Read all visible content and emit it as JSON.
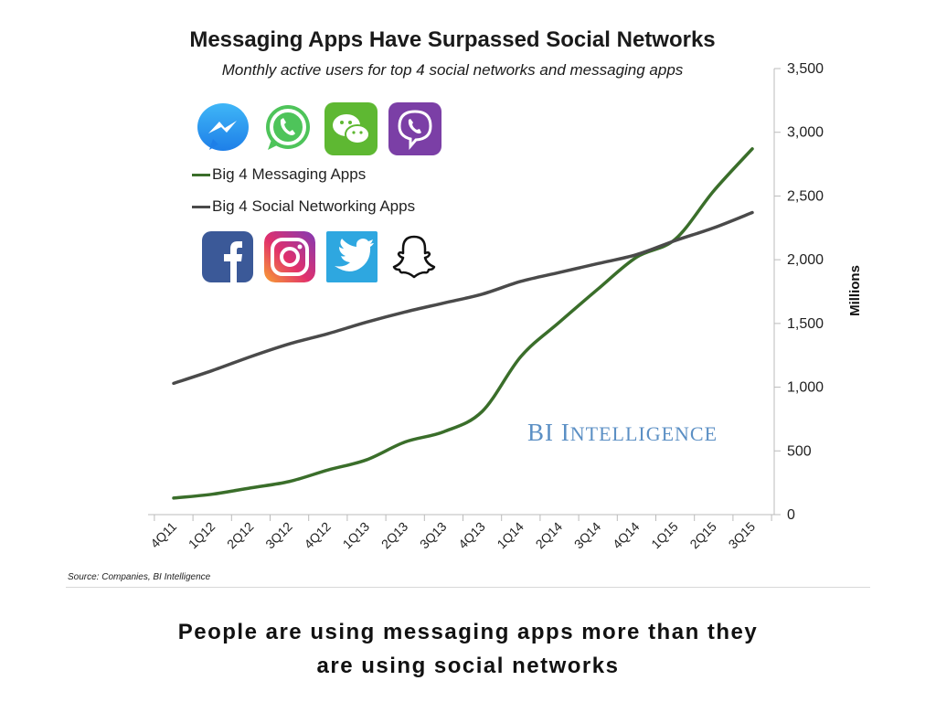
{
  "chart_data": {
    "type": "line",
    "title": "Messaging Apps Have Surpassed Social Networks",
    "subtitle": "Monthly active users for top 4 social networks and messaging apps",
    "ylabel": "Millions",
    "ylim": [
      0,
      3500
    ],
    "yticks": [
      0,
      500,
      1000,
      1500,
      2000,
      2500,
      3000,
      3500
    ],
    "ytick_labels": [
      "0",
      "500",
      "1,000",
      "1,500",
      "2,000",
      "2,500",
      "3,000",
      "3,500"
    ],
    "categories": [
      "4Q11",
      "1Q12",
      "2Q12",
      "3Q12",
      "4Q12",
      "1Q13",
      "2Q13",
      "3Q13",
      "4Q13",
      "1Q14",
      "2Q14",
      "3Q14",
      "4Q14",
      "1Q15",
      "2Q15",
      "3Q15"
    ],
    "series": [
      {
        "name": "Big 4 Messaging Apps",
        "color": "#3a6e2a",
        "values": [
          130,
          160,
          210,
          260,
          350,
          430,
          570,
          650,
          810,
          1240,
          1510,
          1770,
          2020,
          2160,
          2540,
          2870
        ]
      },
      {
        "name": "Big 4 Social Networking Apps",
        "color": "#4a4a4a",
        "values": [
          1030,
          1130,
          1240,
          1340,
          1420,
          1510,
          1590,
          1660,
          1730,
          1830,
          1900,
          1970,
          2040,
          2150,
          2250,
          2370
        ]
      }
    ],
    "legend_position": "top-left",
    "grid": false
  },
  "icons": {
    "messaging": [
      "messenger-icon",
      "whatsapp-icon",
      "wechat-icon",
      "viber-icon"
    ],
    "social": [
      "facebook-icon",
      "instagram-icon",
      "twitter-icon",
      "snapchat-icon"
    ]
  },
  "watermark": {
    "prefix": "BI I",
    "rest": "NTELLIGENCE"
  },
  "source": "Source: Companies, BI Intelligence",
  "caption": {
    "line1": "People are using messaging apps more than they",
    "line2": "are using social networks"
  }
}
